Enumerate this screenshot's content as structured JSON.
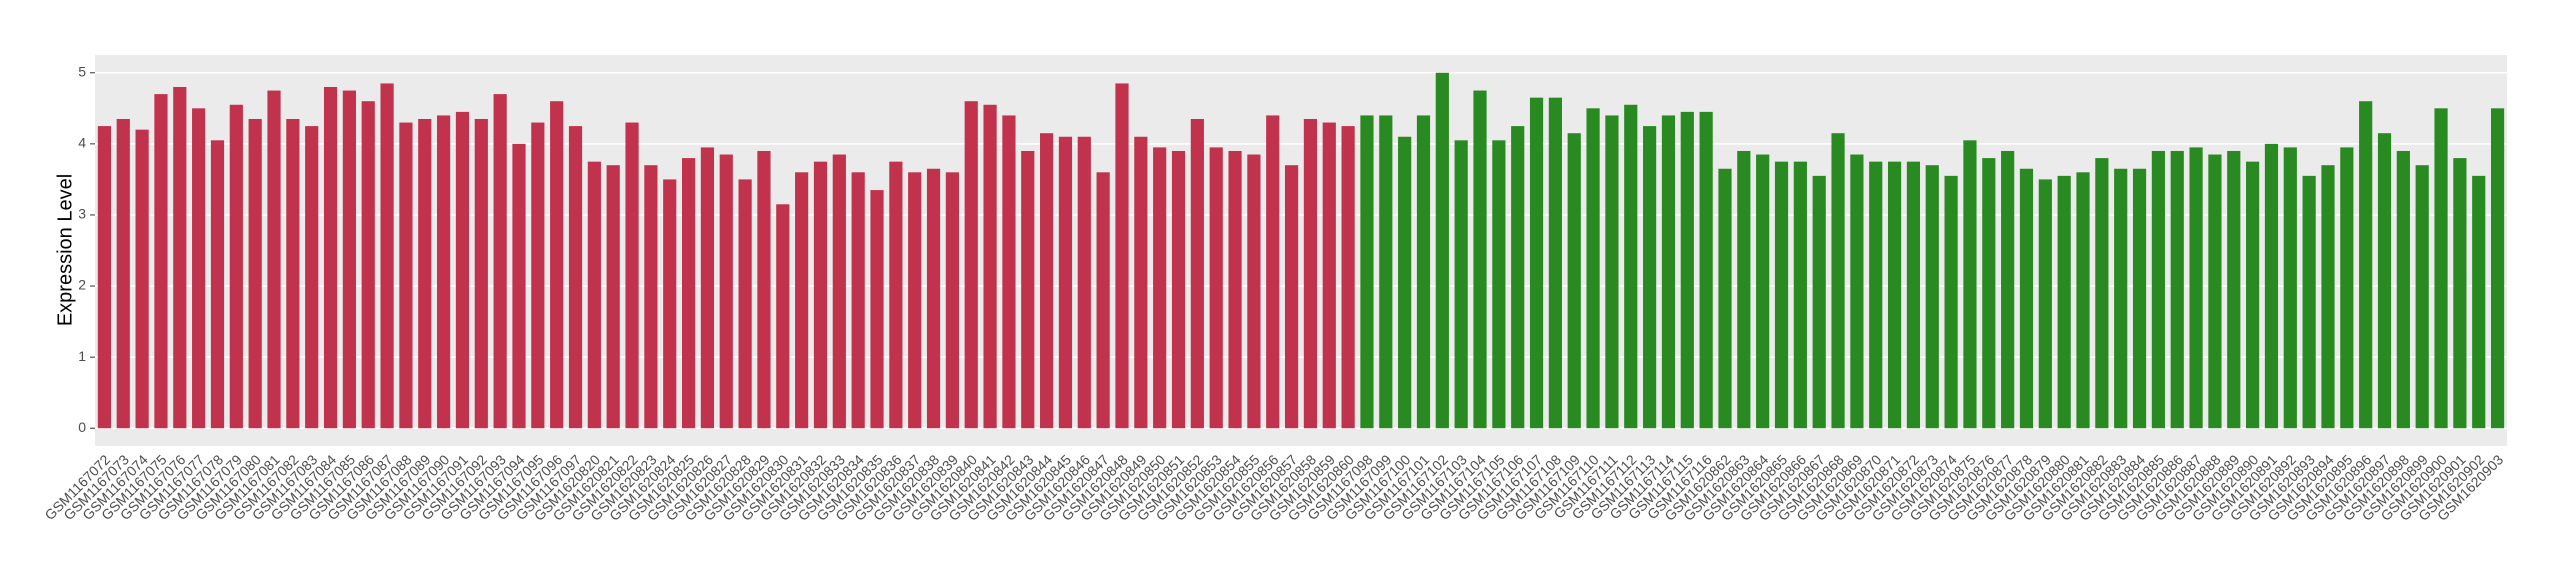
{
  "chart_data": {
    "type": "bar",
    "y_label": "Expression Level",
    "categories": [
      "GSM1167072",
      "GSM1167073",
      "GSM1167074",
      "GSM1167075",
      "GSM1167076",
      "GSM1167077",
      "GSM1167078",
      "GSM1167079",
      "GSM1167080",
      "GSM1167081",
      "GSM1167082",
      "GSM1167083",
      "GSM1167084",
      "GSM1167085",
      "GSM1167086",
      "GSM1167087",
      "GSM1167088",
      "GSM1167089",
      "GSM1167090",
      "GSM1167091",
      "GSM1167092",
      "GSM1167093",
      "GSM1167094",
      "GSM1167095",
      "GSM1167096",
      "GSM1167097",
      "GSM1620820",
      "GSM1620821",
      "GSM1620822",
      "GSM1620823",
      "GSM1620824",
      "GSM1620825",
      "GSM1620826",
      "GSM1620827",
      "GSM1620828",
      "GSM1620829",
      "GSM1620830",
      "GSM1620831",
      "GSM1620832",
      "GSM1620833",
      "GSM1620834",
      "GSM1620835",
      "GSM1620836",
      "GSM1620837",
      "GSM1620838",
      "GSM1620839",
      "GSM1620840",
      "GSM1620841",
      "GSM1620842",
      "GSM1620843",
      "GSM1620844",
      "GSM1620845",
      "GSM1620846",
      "GSM1620847",
      "GSM1620848",
      "GSM1620849",
      "GSM1620850",
      "GSM1620851",
      "GSM1620852",
      "GSM1620853",
      "GSM1620854",
      "GSM1620855",
      "GSM1620856",
      "GSM1620857",
      "GSM1620858",
      "GSM1620859",
      "GSM1620860",
      "GSM1167098",
      "GSM1167099",
      "GSM1167100",
      "GSM1167101",
      "GSM1167102",
      "GSM1167103",
      "GSM1167104",
      "GSM1167105",
      "GSM1167106",
      "GSM1167107",
      "GSM1167108",
      "GSM1167109",
      "GSM1167110",
      "GSM1167111",
      "GSM1167112",
      "GSM1167113",
      "GSM1167114",
      "GSM1167115",
      "GSM1167116",
      "GSM1620862",
      "GSM1620863",
      "GSM1620864",
      "GSM1620865",
      "GSM1620866",
      "GSM1620867",
      "GSM1620868",
      "GSM1620869",
      "GSM1620870",
      "GSM1620871",
      "GSM1620872",
      "GSM1620873",
      "GSM1620874",
      "GSM1620875",
      "GSM1620876",
      "GSM1620877",
      "GSM1620878",
      "GSM1620879",
      "GSM1620880",
      "GSM1620881",
      "GSM1620882",
      "GSM1620883",
      "GSM1620884",
      "GSM1620885",
      "GSM1620886",
      "GSM1620887",
      "GSM1620888",
      "GSM1620889",
      "GSM1620890",
      "GSM1620891",
      "GSM1620892",
      "GSM1620893",
      "GSM1620894",
      "GSM1620895",
      "GSM1620896",
      "GSM1620897",
      "GSM1620898",
      "GSM1620899",
      "GSM1620900",
      "GSM1620901",
      "GSM1620902",
      "GSM1620903"
    ],
    "values": [
      4.25,
      4.35,
      4.2,
      4.7,
      4.8,
      4.5,
      4.05,
      4.55,
      4.35,
      4.75,
      4.35,
      4.25,
      4.8,
      4.75,
      4.6,
      4.85,
      4.3,
      4.35,
      4.4,
      4.45,
      4.35,
      4.7,
      4.0,
      4.3,
      4.6,
      4.25,
      3.75,
      3.7,
      4.3,
      3.7,
      3.5,
      3.8,
      3.95,
      3.85,
      3.5,
      3.9,
      3.15,
      3.6,
      3.75,
      3.85,
      3.6,
      3.35,
      3.75,
      3.6,
      3.65,
      3.6,
      4.6,
      4.55,
      4.4,
      3.9,
      4.15,
      4.1,
      4.1,
      3.6,
      4.85,
      4.1,
      3.95,
      3.9,
      4.35,
      3.95,
      3.9,
      3.85,
      4.4,
      3.7,
      4.35,
      4.3,
      4.25,
      4.4,
      4.4,
      4.1,
      4.4,
      5.0,
      4.05,
      4.75,
      4.05,
      4.25,
      4.65,
      4.65,
      4.15,
      4.5,
      4.4,
      4.55,
      4.25,
      4.4,
      4.45,
      4.45,
      3.65,
      3.9,
      3.85,
      3.75,
      3.75,
      3.55,
      4.15,
      3.85,
      3.75,
      3.75,
      3.75,
      3.7,
      3.55,
      4.05,
      3.8,
      3.9,
      3.65,
      3.5,
      3.55,
      3.6,
      3.8,
      3.65,
      3.65,
      3.9,
      3.9,
      3.95,
      3.85,
      3.9,
      3.75,
      4.0,
      3.95,
      3.55,
      3.7,
      3.95,
      4.6,
      4.15,
      3.9,
      3.7,
      4.5,
      3.8,
      3.55,
      4.5
    ],
    "colors": [
      "#c1334d",
      "#c1334d",
      "#c1334d",
      "#c1334d",
      "#c1334d",
      "#c1334d",
      "#c1334d",
      "#c1334d",
      "#c1334d",
      "#c1334d",
      "#c1334d",
      "#c1334d",
      "#c1334d",
      "#c1334d",
      "#c1334d",
      "#c1334d",
      "#c1334d",
      "#c1334d",
      "#c1334d",
      "#c1334d",
      "#c1334d",
      "#c1334d",
      "#c1334d",
      "#c1334d",
      "#c1334d",
      "#c1334d",
      "#c1334d",
      "#c1334d",
      "#c1334d",
      "#c1334d",
      "#c1334d",
      "#c1334d",
      "#c1334d",
      "#c1334d",
      "#c1334d",
      "#c1334d",
      "#c1334d",
      "#c1334d",
      "#c1334d",
      "#c1334d",
      "#c1334d",
      "#c1334d",
      "#c1334d",
      "#c1334d",
      "#c1334d",
      "#c1334d",
      "#c1334d",
      "#c1334d",
      "#c1334d",
      "#c1334d",
      "#c1334d",
      "#c1334d",
      "#c1334d",
      "#c1334d",
      "#c1334d",
      "#c1334d",
      "#c1334d",
      "#c1334d",
      "#c1334d",
      "#c1334d",
      "#c1334d",
      "#c1334d",
      "#c1334d",
      "#c1334d",
      "#c1334d",
      "#c1334d",
      "#c1334d",
      "#2a8a22",
      "#2a8a22",
      "#2a8a22",
      "#2a8a22",
      "#2a8a22",
      "#2a8a22",
      "#2a8a22",
      "#2a8a22",
      "#2a8a22",
      "#2a8a22",
      "#2a8a22",
      "#2a8a22",
      "#2a8a22",
      "#2a8a22",
      "#2a8a22",
      "#2a8a22",
      "#2a8a22",
      "#2a8a22",
      "#2a8a22",
      "#2a8a22",
      "#2a8a22",
      "#2a8a22",
      "#2a8a22",
      "#2a8a22",
      "#2a8a22",
      "#2a8a22",
      "#2a8a22",
      "#2a8a22",
      "#2a8a22",
      "#2a8a22",
      "#2a8a22",
      "#2a8a22",
      "#2a8a22",
      "#2a8a22",
      "#2a8a22",
      "#2a8a22",
      "#2a8a22",
      "#2a8a22",
      "#2a8a22",
      "#2a8a22",
      "#2a8a22",
      "#2a8a22",
      "#2a8a22",
      "#2a8a22",
      "#2a8a22",
      "#2a8a22",
      "#2a8a22",
      "#2a8a22",
      "#2a8a22",
      "#2a8a22",
      "#2a8a22",
      "#2a8a22",
      "#2a8a22",
      "#2a8a22",
      "#2a8a22",
      "#2a8a22",
      "#2a8a22",
      "#2a8a22",
      "#2a8a22",
      "#2a8a22",
      "#2a8a22"
    ],
    "ylim": [
      -0.25,
      5.25
    ],
    "yticks": [
      0,
      1,
      2,
      3,
      4,
      5
    ],
    "grid": true
  }
}
